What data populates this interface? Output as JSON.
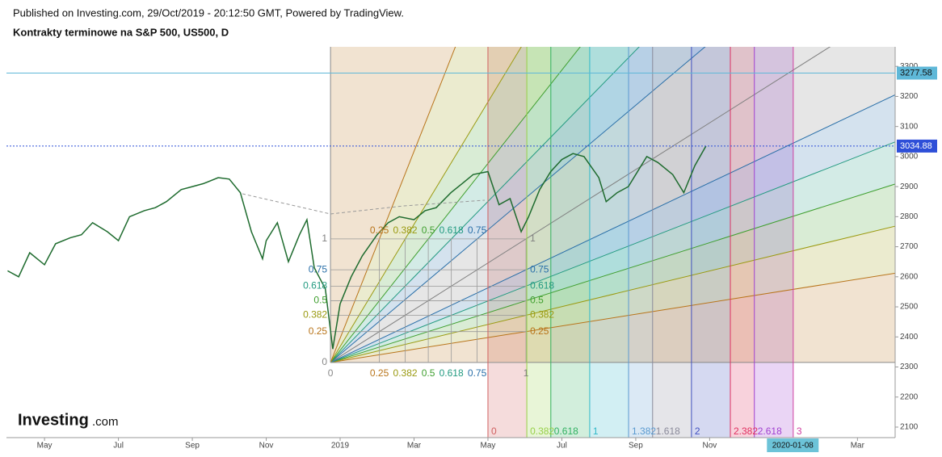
{
  "header": {
    "published": "Published on Investing.com, 29/Oct/2019 - 20:12:50 GMT, Powered by TradingView.",
    "instrument": "Kontrakty terminowe na S&P 500, US500, D"
  },
  "logo": {
    "brand": "Investing",
    "suffix": ".com"
  },
  "chart_data": {
    "type": "line",
    "color": "#1e6b2e",
    "x": [
      3.0,
      3.3,
      3.6,
      4.0,
      4.3,
      4.7,
      5.0,
      5.3,
      5.7,
      6.0,
      6.3,
      6.7,
      7.0,
      7.3,
      7.7,
      8.0,
      8.3,
      8.7,
      9.0,
      9.3,
      9.6,
      9.9,
      10.0,
      10.3,
      10.6,
      10.9,
      11.1,
      11.3,
      11.6,
      11.8,
      12.0,
      12.3,
      12.6,
      13.0,
      13.3,
      13.6,
      14.0,
      14.3,
      14.6,
      15.0,
      15.3,
      15.6,
      16.0,
      16.3,
      16.6,
      16.9,
      17.1,
      17.4,
      17.7,
      18.0,
      18.3,
      18.6,
      19.0,
      19.2,
      19.5,
      19.8,
      20.0,
      20.3,
      20.6,
      21.0,
      21.3,
      21.6,
      21.9
    ],
    "values": [
      2620,
      2600,
      2680,
      2640,
      2710,
      2730,
      2740,
      2780,
      2750,
      2720,
      2800,
      2820,
      2830,
      2850,
      2890,
      2900,
      2910,
      2930,
      2925,
      2880,
      2750,
      2660,
      2720,
      2780,
      2650,
      2740,
      2790,
      2630,
      2560,
      2360,
      2510,
      2600,
      2670,
      2740,
      2780,
      2800,
      2790,
      2820,
      2830,
      2880,
      2910,
      2940,
      2950,
      2840,
      2860,
      2750,
      2800,
      2890,
      2950,
      2990,
      3010,
      3000,
      2930,
      2850,
      2880,
      2900,
      2940,
      3000,
      2980,
      2940,
      2880,
      2970,
      3035
    ],
    "xlim": [
      2.97,
      27.02
    ],
    "xticks": [
      {
        "value": 4,
        "label": "May"
      },
      {
        "value": 6,
        "label": "Jul"
      },
      {
        "value": 8,
        "label": "Sep"
      },
      {
        "value": 10,
        "label": "Nov"
      },
      {
        "value": 12,
        "label": "2019"
      },
      {
        "value": 14,
        "label": "Mar"
      },
      {
        "value": 16,
        "label": "May"
      },
      {
        "value": 18,
        "label": "Jul"
      },
      {
        "value": 20,
        "label": "Sep"
      },
      {
        "value": 22,
        "label": "Nov"
      },
      {
        "value": 26,
        "label": "Mar"
      }
    ],
    "crosshair_x": {
      "value": 24.25,
      "label": "2020-01-08"
    },
    "ylim": [
      2065,
      3365
    ],
    "yticks": [
      2100,
      2200,
      2300,
      2400,
      2500,
      2600,
      2700,
      2800,
      2900,
      3000,
      3100,
      3200,
      3300
    ],
    "price_lines": [
      {
        "value": 3277.58,
        "color": "#5fb8d8",
        "style": "solid"
      },
      {
        "value": 3034.88,
        "color": "#2e4fd8",
        "style": "dotted"
      }
    ],
    "fan": {
      "start": [
        11.74,
        2315
      ],
      "end": [
        17.03,
        2726
      ],
      "levels": [
        {
          "level": 0,
          "color": "#888888"
        },
        {
          "level": 0.25,
          "color": "#b8741a"
        },
        {
          "level": 0.382,
          "color": "#9a9a10"
        },
        {
          "level": 0.5,
          "color": "#3f9f2f"
        },
        {
          "level": 0.618,
          "color": "#229a80"
        },
        {
          "level": 0.75,
          "color": "#2a6fa8"
        },
        {
          "level": 1,
          "color": "#808080"
        }
      ]
    },
    "time_zones": {
      "start": 16.0,
      "unit": 2.754,
      "levels": [
        {
          "level": 0,
          "color": "#d06060"
        },
        {
          "level": 0.382,
          "color": "#98d048"
        },
        {
          "level": 0.618,
          "color": "#30b060"
        },
        {
          "level": 1,
          "color": "#30b8c8"
        },
        {
          "level": 1.382,
          "color": "#5a9ad0"
        },
        {
          "level": 1.618,
          "color": "#8a8a9a"
        },
        {
          "level": 2,
          "color": "#4050c0"
        },
        {
          "level": 2.382,
          "color": "#e03060"
        },
        {
          "level": 2.618,
          "color": "#a040d0"
        },
        {
          "level": 3,
          "color": "#d040a0"
        }
      ]
    }
  }
}
